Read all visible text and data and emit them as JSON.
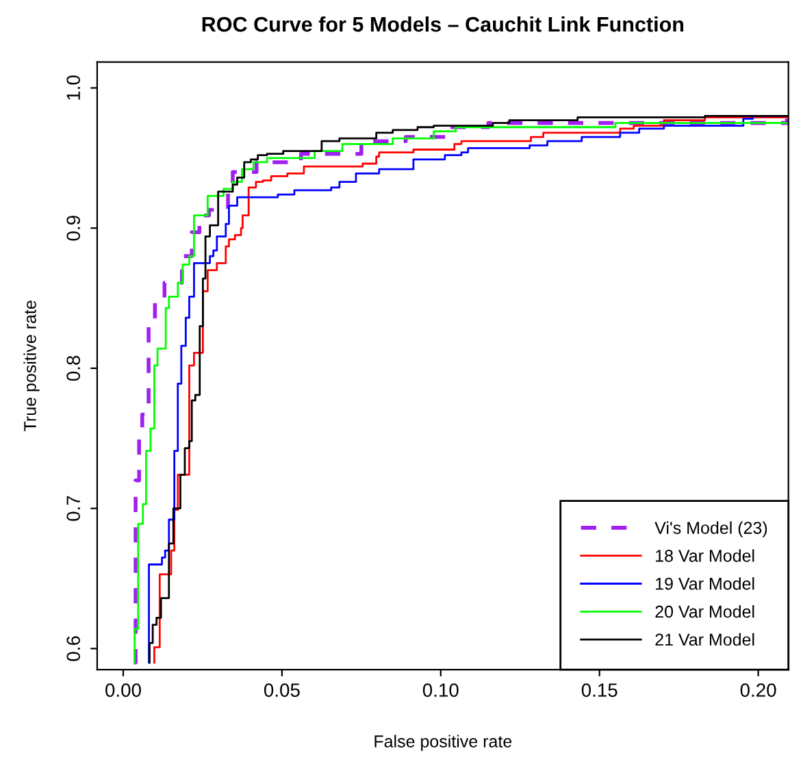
{
  "chart_data": {
    "type": "step",
    "title": "ROC Curve for 5 Models – Cauchit Link Function",
    "xlabel": "False positive rate",
    "ylabel": "True positive rate",
    "xlim": [
      -0.0082,
      0.2095
    ],
    "ylim": [
      0.585,
      1.0185
    ],
    "xticks": [
      {
        "value": 0,
        "label": "0.00"
      },
      0.05,
      {
        "value": 0.1,
        "label": "0.10"
      },
      0.15,
      {
        "value": 0.2,
        "label": "0.20"
      }
    ],
    "yticks": [
      0.6,
      0.7,
      0.8,
      0.9,
      {
        "value": 1,
        "label": "1.0"
      }
    ],
    "grid": false,
    "legend": "bottom right",
    "marker": "none",
    "series": [
      {
        "name": "Vi's Model (23)",
        "color": "#a020f0",
        "line_style": "dashed",
        "x": [
          0.0034,
          0.0039,
          0.005,
          0.006,
          0.008,
          0.01,
          0.013,
          0.0185,
          0.0216,
          0.024,
          0.027,
          0.033,
          0.0345,
          0.042,
          0.056,
          0.075,
          0.089,
          0.103,
          0.115,
          0.209
        ],
        "values": [
          0.59,
          0.72,
          0.753,
          0.767,
          0.83,
          0.848,
          0.861,
          0.88,
          0.897,
          0.909,
          0.913,
          0.929,
          0.94,
          0.947,
          0.953,
          0.962,
          0.965,
          0.972,
          0.975,
          0.978
        ]
      },
      {
        "name": "18 Var Model",
        "color": "#ff0000",
        "line_style": "solid",
        "x": [
          0.0098,
          0.0098,
          0.0115,
          0.0151,
          0.0161,
          0.0172,
          0.0208,
          0.0223,
          0.0251,
          0.0266,
          0.0295,
          0.0323,
          0.0333,
          0.0352,
          0.0371,
          0.0376,
          0.0395,
          0.0418,
          0.044,
          0.0466,
          0.0517,
          0.0569,
          0.0754,
          0.0797,
          0.0806,
          0.0914,
          0.1043,
          0.1065,
          0.1284,
          0.1323,
          0.1565,
          0.1608,
          0.1703,
          0.1832,
          0.209
        ],
        "values": [
          0.59,
          0.601,
          0.653,
          0.67,
          0.699,
          0.724,
          0.802,
          0.811,
          0.855,
          0.87,
          0.875,
          0.887,
          0.892,
          0.895,
          0.9,
          0.909,
          0.929,
          0.933,
          0.934,
          0.937,
          0.939,
          0.944,
          0.946,
          0.951,
          0.954,
          0.956,
          0.96,
          0.962,
          0.965,
          0.968,
          0.971,
          0.973,
          0.977,
          0.979,
          0.979
        ]
      },
      {
        "name": "19 Var Model",
        "color": "#0000ff",
        "line_style": "solid",
        "x": [
          0.0081,
          0.0081,
          0.0122,
          0.0132,
          0.0144,
          0.0161,
          0.0172,
          0.0183,
          0.0197,
          0.0208,
          0.0223,
          0.0273,
          0.0284,
          0.0295,
          0.0323,
          0.0333,
          0.0359,
          0.0487,
          0.0539,
          0.0655,
          0.0681,
          0.0733,
          0.0806,
          0.0914,
          0.1013,
          0.1065,
          0.1086,
          0.128,
          0.1336,
          0.1444,
          0.1565,
          0.1625,
          0.1703,
          0.1953,
          0.1983,
          0.209
        ],
        "values": [
          0.59,
          0.66,
          0.665,
          0.67,
          0.692,
          0.741,
          0.789,
          0.816,
          0.836,
          0.851,
          0.875,
          0.88,
          0.884,
          0.894,
          0.903,
          0.916,
          0.922,
          0.924,
          0.927,
          0.929,
          0.933,
          0.939,
          0.942,
          0.949,
          0.952,
          0.954,
          0.957,
          0.959,
          0.962,
          0.965,
          0.968,
          0.971,
          0.973,
          0.978,
          0.98,
          0.98
        ]
      },
      {
        "name": "20 Var Model",
        "color": "#00ff00",
        "line_style": "solid",
        "x": [
          0.0036,
          0.0036,
          0.0047,
          0.0062,
          0.0072,
          0.0086,
          0.0098,
          0.0108,
          0.0134,
          0.0144,
          0.0172,
          0.0187,
          0.0208,
          0.0223,
          0.0266,
          0.0316,
          0.0345,
          0.0374,
          0.041,
          0.0453,
          0.0603,
          0.069,
          0.0849,
          0.0978,
          0.1047,
          0.155,
          0.209
        ],
        "values": [
          0.59,
          0.614,
          0.689,
          0.703,
          0.741,
          0.757,
          0.802,
          0.814,
          0.843,
          0.851,
          0.861,
          0.874,
          0.88,
          0.909,
          0.923,
          0.928,
          0.933,
          0.942,
          0.947,
          0.95,
          0.955,
          0.96,
          0.964,
          0.969,
          0.972,
          0.975,
          0.975
        ]
      },
      {
        "name": "21 Var Model",
        "color": "#000000",
        "line_style": "solid",
        "x": [
          0.0083,
          0.0083,
          0.0093,
          0.0105,
          0.0119,
          0.0144,
          0.0158,
          0.018,
          0.0194,
          0.0208,
          0.0216,
          0.0227,
          0.0241,
          0.0251,
          0.0259,
          0.0273,
          0.0299,
          0.0345,
          0.0359,
          0.0381,
          0.0402,
          0.0424,
          0.0453,
          0.0504,
          0.0625,
          0.0681,
          0.0797,
          0.0849,
          0.0927,
          0.0978,
          0.1164,
          0.1216,
          0.1431,
          0.1832,
          0.209
        ],
        "values": [
          0.59,
          0.604,
          0.617,
          0.622,
          0.636,
          0.675,
          0.7,
          0.724,
          0.743,
          0.748,
          0.777,
          0.781,
          0.83,
          0.864,
          0.894,
          0.902,
          0.926,
          0.931,
          0.936,
          0.947,
          0.949,
          0.952,
          0.953,
          0.955,
          0.962,
          0.964,
          0.968,
          0.97,
          0.972,
          0.973,
          0.975,
          0.977,
          0.979,
          0.98,
          0.98
        ]
      }
    ]
  }
}
